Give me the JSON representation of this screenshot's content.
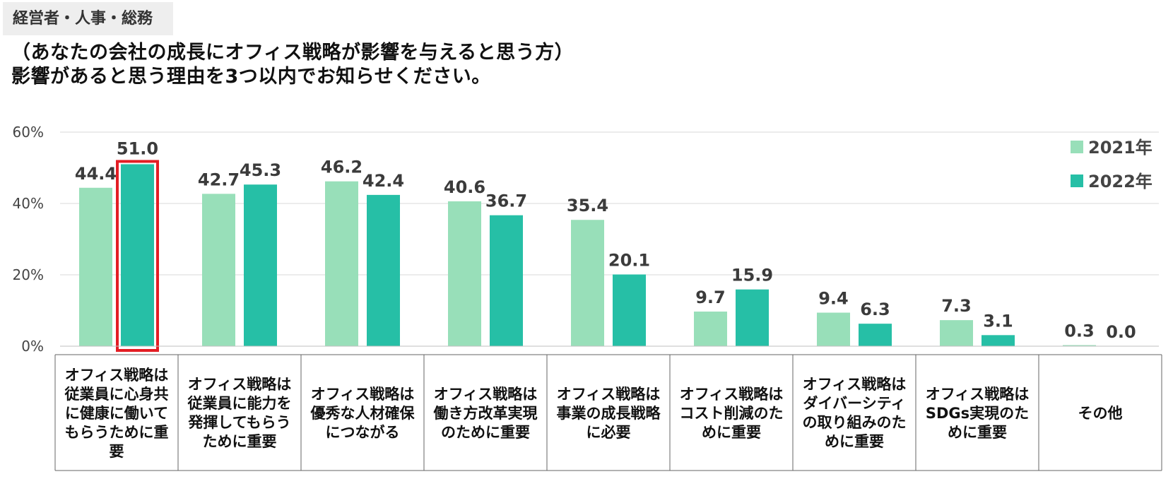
{
  "header": {
    "tag": "経営者・人事・総務",
    "title_line1": "（あなたの会社の成長にオフィス戦略が影響を与えると思う方）",
    "title_line2": "影響があると思う理由を3つ以内でお知らせください。"
  },
  "colors": {
    "series_2021": "#98dfb9",
    "series_2022": "#26bfa6",
    "highlight": "#e31e24",
    "grid": "#d9d9d9"
  },
  "chart_data": {
    "type": "bar",
    "title": "影響があると思う理由を3つ以内でお知らせください。",
    "xlabel": "",
    "ylabel": "",
    "ylim": [
      0,
      60
    ],
    "yticks": [
      "0%",
      "20%",
      "40%",
      "60%"
    ],
    "ytick_values": [
      0,
      20,
      40,
      60
    ],
    "grid": true,
    "legend_position": "top-right",
    "highlight": {
      "series": 1,
      "category": 0
    },
    "categories": [
      "オフィス戦略は従業員に心身共に健康に働いてもらうために重要",
      "オフィス戦略は従業員に能力を発揮してもらうために重要",
      "オフィス戦略は優秀な人材確保につながる",
      "オフィス戦略は働き方改革実現のために重要",
      "オフィス戦略は事業の成長戦略に必要",
      "オフィス戦略はコスト削減のために重要",
      "オフィス戦略はダイバーシティの取り組みのために重要",
      "オフィス戦略はSDGs実現のために重要",
      "その他"
    ],
    "series": [
      {
        "name": "2021年",
        "values": [
          44.4,
          42.7,
          46.2,
          40.6,
          35.4,
          9.7,
          9.4,
          7.3,
          0.3
        ],
        "labels": [
          "44.4",
          "42.7",
          "46.2",
          "40.6",
          "35.4",
          "9.7",
          "9.4",
          "7.3",
          "0.3"
        ]
      },
      {
        "name": "2022年",
        "values": [
          51.0,
          45.3,
          42.4,
          36.7,
          20.1,
          15.9,
          6.3,
          3.1,
          0.0
        ],
        "labels": [
          "51.0",
          "45.3",
          "42.4",
          "36.7",
          "20.1",
          "15.9",
          "6.3",
          "3.1",
          "0.0"
        ]
      }
    ]
  }
}
